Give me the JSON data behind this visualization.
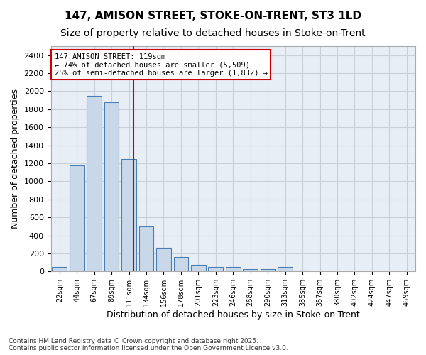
{
  "title_line1": "147, AMISON STREET, STOKE-ON-TRENT, ST3 1LD",
  "title_line2": "Size of property relative to detached houses in Stoke-on-Trent",
  "xlabel": "Distribution of detached houses by size in Stoke-on-Trent",
  "ylabel": "Number of detached properties",
  "categories": [
    "22sqm",
    "44sqm",
    "67sqm",
    "89sqm",
    "111sqm",
    "134sqm",
    "156sqm",
    "178sqm",
    "201sqm",
    "223sqm",
    "246sqm",
    "268sqm",
    "290sqm",
    "313sqm",
    "335sqm",
    "357sqm",
    "380sqm",
    "402sqm",
    "424sqm",
    "447sqm",
    "469sqm"
  ],
  "values": [
    50,
    1175,
    1950,
    1875,
    1250,
    500,
    260,
    160,
    75,
    50,
    50,
    30,
    30,
    50,
    10,
    5,
    5,
    5,
    2,
    2,
    2
  ],
  "bar_color": "#c8d8e8",
  "bar_edge_color": "#4a7fb5",
  "grid_color": "#c8d0dc",
  "bg_color": "#e8eef5",
  "annotation_text": "147 AMISON STREET: 119sqm\n← 74% of detached houses are smaller (5,509)\n25% of semi-detached houses are larger (1,832) →",
  "vline_x_index": 4.27,
  "vline_color": "#cc0000",
  "annotation_box_color": "#cc0000",
  "ylim": [
    0,
    2500
  ],
  "yticks": [
    0,
    200,
    400,
    600,
    800,
    1000,
    1200,
    1400,
    1600,
    1800,
    2000,
    2200,
    2400
  ],
  "footnote": "Contains HM Land Registry data © Crown copyright and database right 2025.\nContains public sector information licensed under the Open Government Licence v3.0.",
  "title_fontsize": 11,
  "subtitle_fontsize": 10,
  "xlabel_fontsize": 9,
  "ylabel_fontsize": 9
}
